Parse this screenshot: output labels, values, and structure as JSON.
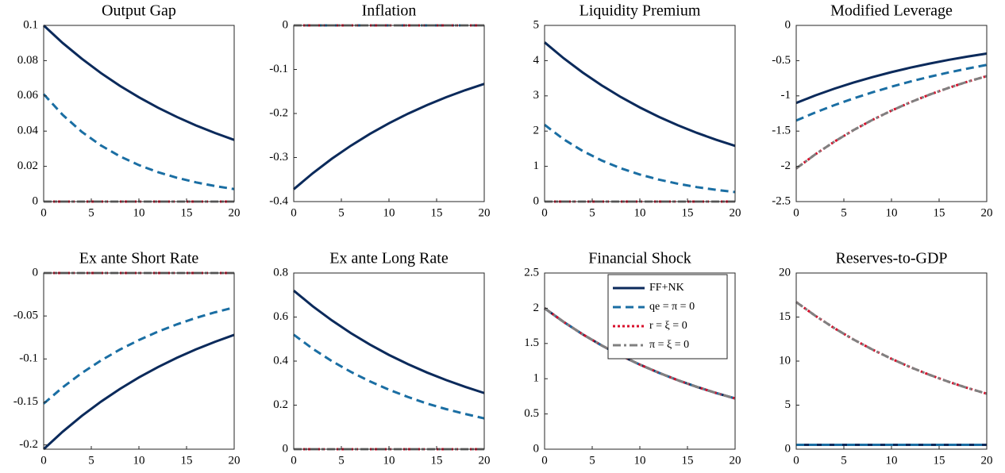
{
  "chart_data": [
    {
      "type": "line",
      "title": "Output Gap",
      "x": [
        0,
        2,
        4,
        6,
        8,
        10,
        12,
        14,
        16,
        18,
        20
      ],
      "xlim": [
        0,
        20
      ],
      "xticks": [
        0,
        5,
        10,
        15,
        20
      ],
      "ylim": [
        0,
        0.1
      ],
      "yticks": [
        0,
        0.02,
        0.04,
        0.06,
        0.08,
        0.1
      ],
      "series": [
        {
          "color": "#0b2a5b",
          "dash": "solid",
          "values": [
            0.1,
            0.09,
            0.0811,
            0.073,
            0.0657,
            0.0592,
            0.0533,
            0.048,
            0.0432,
            0.0389,
            0.035
          ]
        },
        {
          "color": "#1a6ea3",
          "dash": "dashed",
          "values": [
            0.061,
            0.0492,
            0.0396,
            0.0319,
            0.0257,
            0.0207,
            0.0167,
            0.0135,
            0.0109,
            0.0088,
            0.0071
          ]
        },
        {
          "color": "#d8102c",
          "dash": "dotted",
          "values": [
            0,
            0,
            0,
            0,
            0,
            0,
            0,
            0,
            0,
            0,
            0
          ]
        },
        {
          "color": "#808080",
          "dash": "dashdot",
          "values": [
            0,
            0,
            0,
            0,
            0,
            0,
            0,
            0,
            0,
            0,
            0
          ]
        }
      ]
    },
    {
      "type": "line",
      "title": "Inflation",
      "x": [
        0,
        2,
        4,
        6,
        8,
        10,
        12,
        14,
        16,
        18,
        20
      ],
      "xlim": [
        0,
        20
      ],
      "xticks": [
        0,
        5,
        10,
        15,
        20
      ],
      "ylim": [
        -0.4,
        0
      ],
      "yticks": [
        -0.4,
        -0.3,
        -0.2,
        -0.1,
        0
      ],
      "series": [
        {
          "color": "#0b2a5b",
          "dash": "solid",
          "values": [
            -0.372,
            -0.3356,
            -0.3027,
            -0.2731,
            -0.2463,
            -0.2222,
            -0.2004,
            -0.1808,
            -0.1631,
            -0.1471,
            -0.1327
          ]
        },
        {
          "color": "#1a6ea3",
          "dash": "dashed",
          "values": [
            0,
            0,
            0,
            0,
            0,
            0,
            0,
            0,
            0,
            0,
            0
          ]
        },
        {
          "color": "#d8102c",
          "dash": "dotted",
          "values": [
            0,
            0,
            0,
            0,
            0,
            0,
            0,
            0,
            0,
            0,
            0
          ]
        },
        {
          "color": "#808080",
          "dash": "dashdot",
          "values": [
            0,
            0,
            0,
            0,
            0,
            0,
            0,
            0,
            0,
            0,
            0
          ]
        }
      ]
    },
    {
      "type": "line",
      "title": "Liquidity Premium",
      "x": [
        0,
        2,
        4,
        6,
        8,
        10,
        12,
        14,
        16,
        18,
        20
      ],
      "xlim": [
        0,
        20
      ],
      "xticks": [
        0,
        5,
        10,
        15,
        20
      ],
      "ylim": [
        0,
        5
      ],
      "yticks": [
        0,
        1,
        2,
        3,
        4,
        5
      ],
      "series": [
        {
          "color": "#0b2a5b",
          "dash": "solid",
          "values": [
            4.52,
            4.069,
            3.663,
            3.297,
            2.968,
            2.672,
            2.405,
            2.165,
            1.949,
            1.755,
            1.58
          ]
        },
        {
          "color": "#1a6ea3",
          "dash": "dashed",
          "values": [
            2.18,
            1.769,
            1.436,
            1.165,
            0.946,
            0.768,
            0.623,
            0.506,
            0.41,
            0.333,
            0.27
          ]
        },
        {
          "color": "#d8102c",
          "dash": "dotted",
          "values": [
            0,
            0,
            0,
            0,
            0,
            0,
            0,
            0,
            0,
            0,
            0
          ]
        },
        {
          "color": "#808080",
          "dash": "dashdot",
          "values": [
            0,
            0,
            0,
            0,
            0,
            0,
            0,
            0,
            0,
            0,
            0
          ]
        }
      ]
    },
    {
      "type": "line",
      "title": "Modified Leverage",
      "x": [
        0,
        2,
        4,
        6,
        8,
        10,
        12,
        14,
        16,
        18,
        20
      ],
      "xlim": [
        0,
        20
      ],
      "xticks": [
        0,
        5,
        10,
        15,
        20
      ],
      "ylim": [
        -2.5,
        0
      ],
      "yticks": [
        -2.5,
        -2,
        -1.5,
        -1,
        -0.5,
        0
      ],
      "series": [
        {
          "color": "#0b2a5b",
          "dash": "solid",
          "values": [
            -1.1,
            -0.994,
            -0.898,
            -0.812,
            -0.734,
            -0.663,
            -0.599,
            -0.542,
            -0.489,
            -0.442,
            -0.4
          ]
        },
        {
          "color": "#1a6ea3",
          "dash": "dashed",
          "values": [
            -1.35,
            -1.236,
            -1.132,
            -1.037,
            -0.95,
            -0.87,
            -0.796,
            -0.729,
            -0.668,
            -0.612,
            -0.56
          ]
        },
        {
          "color": "#d8102c",
          "dash": "dotted",
          "values": [
            -2.03,
            -1.83,
            -1.65,
            -1.487,
            -1.341,
            -1.209,
            -1.09,
            -0.982,
            -0.886,
            -0.798,
            -0.72
          ]
        },
        {
          "color": "#808080",
          "dash": "dashdot",
          "values": [
            -2.03,
            -1.83,
            -1.65,
            -1.487,
            -1.341,
            -1.209,
            -1.09,
            -0.982,
            -0.886,
            -0.798,
            -0.72
          ]
        }
      ]
    },
    {
      "type": "line",
      "title": "Ex ante Short Rate",
      "x": [
        0,
        2,
        4,
        6,
        8,
        10,
        12,
        14,
        16,
        18,
        20
      ],
      "xlim": [
        0,
        20
      ],
      "xticks": [
        0,
        5,
        10,
        15,
        20
      ],
      "ylim": [
        -0.205,
        0
      ],
      "yticks": [
        -0.2,
        -0.15,
        -0.1,
        -0.05,
        0
      ],
      "series": [
        {
          "color": "#0b2a5b",
          "dash": "solid",
          "values": [
            -0.205,
            -0.1846,
            -0.1663,
            -0.1498,
            -0.1349,
            -0.1215,
            -0.1095,
            -0.0986,
            -0.0888,
            -0.08,
            -0.072
          ]
        },
        {
          "color": "#1a6ea3",
          "dash": "dashed",
          "values": [
            -0.152,
            -0.133,
            -0.1164,
            -0.1019,
            -0.0891,
            -0.078,
            -0.0682,
            -0.0597,
            -0.0522,
            -0.0457,
            -0.04
          ]
        },
        {
          "color": "#d8102c",
          "dash": "dotted",
          "values": [
            0,
            0,
            0,
            0,
            0,
            0,
            0,
            0,
            0,
            0,
            0
          ]
        },
        {
          "color": "#808080",
          "dash": "dashdot",
          "values": [
            0,
            0,
            0,
            0,
            0,
            0,
            0,
            0,
            0,
            0,
            0
          ]
        }
      ]
    },
    {
      "type": "line",
      "title": "Ex ante Long Rate",
      "x": [
        0,
        2,
        4,
        6,
        8,
        10,
        12,
        14,
        16,
        18,
        20
      ],
      "xlim": [
        0,
        20
      ],
      "xticks": [
        0,
        5,
        10,
        15,
        20
      ],
      "ylim": [
        0,
        0.8
      ],
      "yticks": [
        0,
        0.2,
        0.4,
        0.6,
        0.8
      ],
      "series": [
        {
          "color": "#0b2a5b",
          "dash": "solid",
          "values": [
            0.72,
            0.649,
            0.585,
            0.527,
            0.475,
            0.428,
            0.386,
            0.348,
            0.314,
            0.283,
            0.255
          ]
        },
        {
          "color": "#1a6ea3",
          "dash": "dashed",
          "values": [
            0.52,
            0.456,
            0.4,
            0.351,
            0.308,
            0.27,
            0.237,
            0.207,
            0.182,
            0.16,
            0.14
          ]
        },
        {
          "color": "#d8102c",
          "dash": "dotted",
          "values": [
            0,
            0,
            0,
            0,
            0,
            0,
            0,
            0,
            0,
            0,
            0
          ]
        },
        {
          "color": "#808080",
          "dash": "dashdot",
          "values": [
            0,
            0,
            0,
            0,
            0,
            0,
            0,
            0,
            0,
            0,
            0
          ]
        }
      ]
    },
    {
      "type": "line",
      "title": "Financial Shock",
      "x": [
        0,
        2,
        4,
        6,
        8,
        10,
        12,
        14,
        16,
        18,
        20
      ],
      "xlim": [
        0,
        20
      ],
      "xticks": [
        0,
        5,
        10,
        15,
        20
      ],
      "ylim": [
        0,
        2.5
      ],
      "yticks": [
        0,
        0.5,
        1,
        1.5,
        2,
        2.5
      ],
      "legend": "upper right",
      "series": [
        {
          "name": "FF+NK",
          "color": "#0b2a5b",
          "dash": "solid",
          "values": [
            2,
            1.806,
            1.63,
            1.472,
            1.329,
            1.2,
            1.084,
            0.978,
            0.883,
            0.798,
            0.72
          ]
        },
        {
          "name": "qe = π = 0",
          "color": "#1a6ea3",
          "dash": "dashed",
          "values": [
            2,
            1.806,
            1.63,
            1.472,
            1.329,
            1.2,
            1.084,
            0.978,
            0.883,
            0.798,
            0.72
          ]
        },
        {
          "name": "r = ξ = 0",
          "color": "#d8102c",
          "dash": "dotted",
          "values": [
            2,
            1.806,
            1.63,
            1.472,
            1.329,
            1.2,
            1.084,
            0.978,
            0.883,
            0.798,
            0.72
          ]
        },
        {
          "name": "π = ξ = 0",
          "color": "#808080",
          "dash": "dashdot",
          "values": [
            2,
            1.806,
            1.63,
            1.472,
            1.329,
            1.2,
            1.084,
            0.978,
            0.883,
            0.798,
            0.72
          ]
        }
      ]
    },
    {
      "type": "line",
      "title": "Reserves-to-GDP",
      "x": [
        0,
        2,
        4,
        6,
        8,
        10,
        12,
        14,
        16,
        18,
        20
      ],
      "xlim": [
        0,
        20
      ],
      "xticks": [
        0,
        5,
        10,
        15,
        20
      ],
      "ylim": [
        0,
        20
      ],
      "yticks": [
        0,
        5,
        10,
        15,
        20
      ],
      "series": [
        {
          "color": "#0b2a5b",
          "dash": "solid",
          "values": [
            0.5,
            0.5,
            0.5,
            0.5,
            0.5,
            0.5,
            0.5,
            0.5,
            0.5,
            0.5,
            0.5
          ]
        },
        {
          "color": "#1a6ea3",
          "dash": "dashed",
          "values": [
            0.5,
            0.5,
            0.5,
            0.5,
            0.5,
            0.5,
            0.5,
            0.5,
            0.5,
            0.5,
            0.5
          ]
        },
        {
          "color": "#d8102c",
          "dash": "dotted",
          "values": [
            16.7,
            15.15,
            13.74,
            12.46,
            11.31,
            10.26,
            9.3,
            8.44,
            7.65,
            6.94,
            6.3
          ]
        },
        {
          "color": "#808080",
          "dash": "dashdot",
          "values": [
            16.7,
            15.15,
            13.74,
            12.46,
            11.31,
            10.26,
            9.3,
            8.44,
            7.65,
            6.94,
            6.3
          ]
        }
      ]
    }
  ]
}
